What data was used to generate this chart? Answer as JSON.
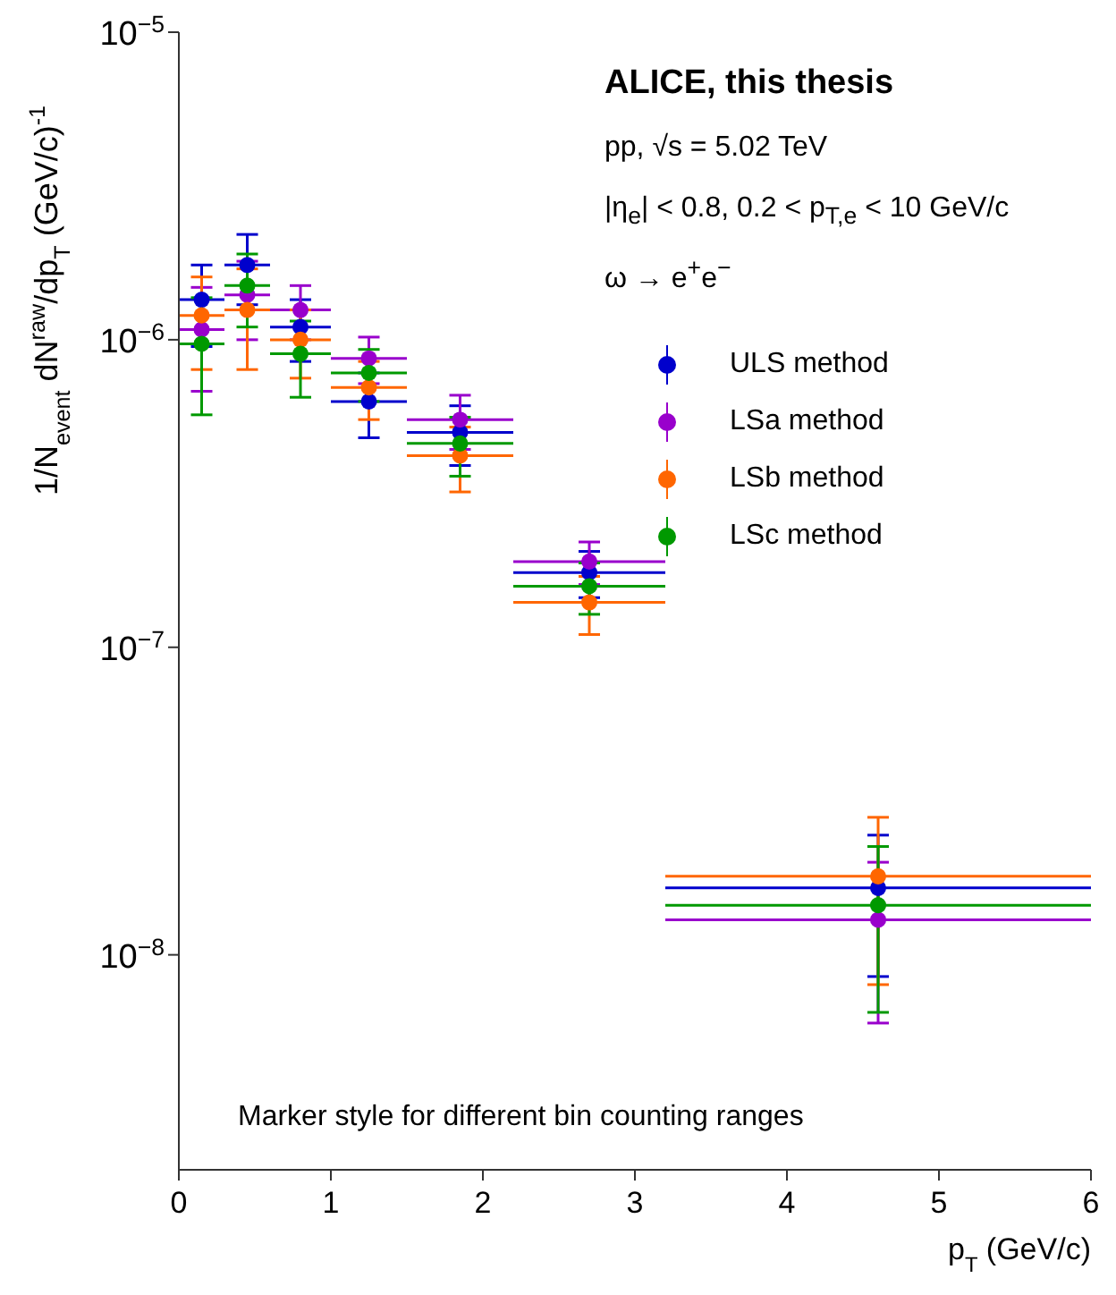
{
  "chart_data": {
    "type": "scatter",
    "title": "ALICE, this thesis",
    "annotations": [
      "pp, √s = 5.02 TeV",
      "|η$_{e}$| < 0.8, 0.2 < p$_{T,e}$ < 10 GeV/c",
      "ω → e$^{+}$e$^{−}$",
      "Marker style for different bin counting ranges"
    ],
    "xlabel": "p$_{T}$ (GeV/c)",
    "ylabel": "1/N$_{event}$ dN$^{raw}$/dp$_{T}$ (GeV/c)$^{-1}$",
    "x": [
      0.15,
      0.45,
      0.8,
      1.25,
      1.85,
      2.7,
      4.6
    ],
    "series": [
      {
        "name": "ULS method",
        "color": "#0000cc",
        "values": [
          1.35e-06,
          1.75e-06,
          1.1e-06,
          6.3e-07,
          5e-07,
          1.75e-07,
          1.65e-08
        ],
        "errors": [
          4e-07,
          4.5e-07,
          2.5e-07,
          1.5e-07,
          1.1e-07,
          3e-08,
          8e-09
        ],
        "xerrors": [
          0.15,
          0.15,
          0.2,
          0.25,
          0.35,
          0.5,
          1.4
        ]
      },
      {
        "name": "LSa method",
        "color": "#9900cc",
        "values": [
          1.08e-06,
          1.4e-06,
          1.25e-06,
          8.7e-07,
          5.5e-07,
          1.9e-07,
          1.3e-08
        ],
        "errors": [
          4e-07,
          4e-07,
          2.5e-07,
          1.5e-07,
          1.1e-07,
          3e-08,
          7e-09
        ],
        "xerrors": [
          0.15,
          0.15,
          0.2,
          0.25,
          0.35,
          0.5,
          1.4
        ]
      },
      {
        "name": "LSb method",
        "color": "#ff6600",
        "values": [
          1.2e-06,
          1.25e-06,
          1e-06,
          7e-07,
          4.2e-07,
          1.4e-07,
          1.8e-08
        ],
        "errors": [
          4e-07,
          4.5e-07,
          2.5e-07,
          1.5e-07,
          1e-07,
          3e-08,
          1e-08
        ],
        "xerrors": [
          0.15,
          0.15,
          0.2,
          0.25,
          0.35,
          0.5,
          1.4
        ]
      },
      {
        "name": "LSc method",
        "color": "#009900",
        "values": [
          9.7e-07,
          1.5e-06,
          9e-07,
          7.8e-07,
          4.6e-07,
          1.58e-07,
          1.45e-08
        ],
        "errors": [
          4e-07,
          4e-07,
          2.5e-07,
          1.5e-07,
          1e-07,
          3e-08,
          8e-09
        ],
        "xerrors": [
          0.15,
          0.15,
          0.2,
          0.25,
          0.35,
          0.5,
          1.4
        ]
      }
    ],
    "marker": "circle",
    "log": "y",
    "legend": "top right",
    "xlim": [
      0,
      6
    ],
    "xticks": [
      0,
      1,
      2,
      3,
      4,
      5,
      6
    ],
    "ylim": [
      2e-09,
      1e-05
    ],
    "yticks": [
      {
        "value": 1e-08,
        "label": "10$^{−8}$"
      },
      {
        "value": 1e-07,
        "label": "10$^{−7}$"
      },
      {
        "value": 1e-06,
        "label": "10$^{−6}$"
      },
      {
        "value": 1e-05,
        "label": "10$^{−5}$"
      }
    ]
  }
}
